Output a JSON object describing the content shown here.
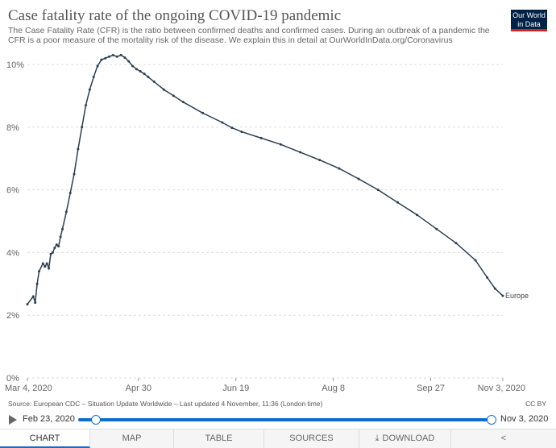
{
  "header": {
    "title": "Case fatality rate of the ongoing COVID-19 pandemic",
    "subtitle": "The Case Fatality Rate (CFR) is the ratio between confirmed deaths and confirmed cases. During an outbreak of a pandemic the CFR is a poor measure of the mortality risk of the disease. We explain this in detail at OurWorldInData.org/Coronavirus",
    "logo_line1": "Our World",
    "logo_line2": "in Data"
  },
  "chart_data": {
    "type": "line",
    "title": "Case fatality rate of the ongoing COVID-19 pandemic",
    "x_tick_labels": [
      "Mar 4, 2020",
      "Apr 30",
      "Jun 19",
      "Aug 8",
      "Sep 27",
      "Nov 3, 2020"
    ],
    "x_tick_days": [
      0,
      57,
      107,
      157,
      207,
      244
    ],
    "xlim": [
      0,
      244
    ],
    "y_tick_labels": [
      "0%",
      "2%",
      "4%",
      "6%",
      "8%",
      "10%"
    ],
    "y_tick_values": [
      0,
      2,
      4,
      6,
      8,
      10
    ],
    "ylim": [
      0,
      10
    ],
    "ylabel": "",
    "xlabel": "",
    "grid": true,
    "series": [
      {
        "name": "Europe",
        "color": "#2c3e50",
        "x": [
          0,
          3,
          4,
          5,
          6,
          8,
          9,
          10,
          11,
          12,
          13,
          14,
          15,
          16,
          17,
          18,
          20,
          22,
          24,
          26,
          28,
          30,
          32,
          34,
          36,
          38,
          40,
          42,
          44,
          46,
          48,
          50,
          52,
          54,
          56,
          58,
          60,
          62,
          65,
          70,
          75,
          80,
          90,
          100,
          105,
          110,
          120,
          130,
          140,
          150,
          160,
          170,
          180,
          190,
          200,
          210,
          220,
          230,
          236,
          240,
          244
        ],
        "y": [
          2.35,
          2.6,
          2.4,
          3.0,
          3.4,
          3.65,
          3.55,
          3.65,
          3.5,
          3.95,
          4.0,
          4.15,
          4.25,
          4.2,
          4.5,
          4.75,
          5.3,
          5.9,
          6.5,
          7.3,
          8.0,
          8.7,
          9.2,
          9.6,
          9.95,
          10.15,
          10.2,
          10.25,
          10.3,
          10.25,
          10.3,
          10.22,
          10.1,
          9.95,
          9.85,
          9.78,
          9.7,
          9.6,
          9.45,
          9.2,
          9.0,
          8.8,
          8.45,
          8.15,
          7.98,
          7.85,
          7.65,
          7.45,
          7.2,
          6.95,
          6.68,
          6.35,
          6.0,
          5.6,
          5.2,
          4.75,
          4.3,
          3.75,
          3.2,
          2.85,
          2.62
        ]
      }
    ],
    "end_label": "Europe"
  },
  "footer": {
    "source": "Source: European CDC – Situation Update Worldwide – Last updated 4 November, 11:36 (London time)",
    "license": "CC BY"
  },
  "timeline": {
    "start_label": "Feb 23, 2020",
    "end_label": "Nov 3, 2020"
  },
  "tabs": [
    {
      "label": "CHART",
      "active": true
    },
    {
      "label": "MAP",
      "active": false
    },
    {
      "label": "TABLE",
      "active": false
    },
    {
      "label": "SOURCES",
      "active": false
    },
    {
      "label": "DOWNLOAD",
      "active": false
    },
    {
      "label": "",
      "active": false
    }
  ]
}
